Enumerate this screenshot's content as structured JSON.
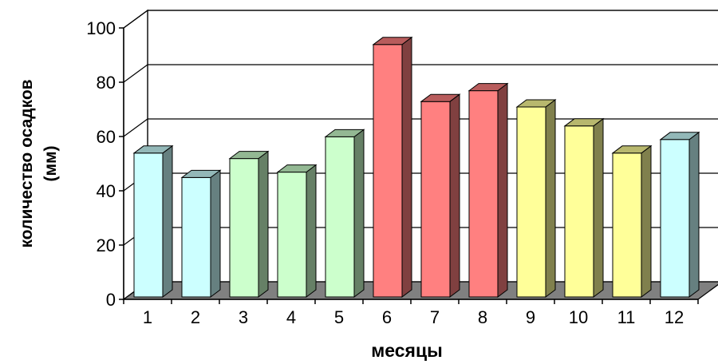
{
  "chart_data": {
    "type": "bar",
    "style": "3d-column",
    "categories": [
      "1",
      "2",
      "3",
      "4",
      "5",
      "6",
      "7",
      "8",
      "9",
      "10",
      "11",
      "12"
    ],
    "values": [
      53,
      44,
      51,
      46,
      59,
      93,
      72,
      76,
      70,
      63,
      53,
      58
    ],
    "xlabel": "месяцы",
    "ylabel_lines": [
      "количество осадков",
      "(мм)"
    ],
    "ylim": [
      0,
      100
    ],
    "yticks": [
      0,
      20,
      40,
      60,
      80,
      100
    ],
    "grid": true,
    "legend": "none",
    "bar_colors": [
      "#ccffff",
      "#ccffff",
      "#ccffcc",
      "#ccffcc",
      "#ccffcc",
      "#ff8080",
      "#ff8080",
      "#ff8080",
      "#ffff99",
      "#ffff99",
      "#ffff99",
      "#ccffff"
    ],
    "floor_color": "#808080"
  }
}
